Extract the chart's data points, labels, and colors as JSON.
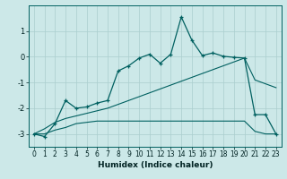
{
  "xlabel": "Humidex (Indice chaleur)",
  "bg_color": "#cce8e8",
  "line_color": "#006060",
  "x_values": [
    0,
    1,
    2,
    3,
    4,
    5,
    6,
    7,
    8,
    9,
    10,
    11,
    12,
    13,
    14,
    15,
    16,
    17,
    18,
    19,
    20,
    21,
    22,
    23
  ],
  "line1_y": [
    -3.0,
    -3.1,
    -2.6,
    -1.7,
    -2.0,
    -1.95,
    -1.8,
    -1.7,
    -0.55,
    -0.35,
    -0.05,
    0.1,
    -0.25,
    0.1,
    1.55,
    0.65,
    0.05,
    0.15,
    0.02,
    -0.02,
    -0.05,
    -2.25,
    -2.25,
    -3.0
  ],
  "line2_y": [
    -3.0,
    -2.8,
    -2.55,
    -2.4,
    -2.3,
    -2.2,
    -2.1,
    -2.0,
    -1.85,
    -1.7,
    -1.55,
    -1.4,
    -1.25,
    -1.1,
    -0.95,
    -0.8,
    -0.65,
    -0.5,
    -0.35,
    -0.2,
    -0.05,
    -0.9,
    -1.05,
    -1.2
  ],
  "line3_y": [
    -3.0,
    -3.0,
    -2.85,
    -2.75,
    -2.6,
    -2.55,
    -2.5,
    -2.5,
    -2.5,
    -2.5,
    -2.5,
    -2.5,
    -2.5,
    -2.5,
    -2.5,
    -2.5,
    -2.5,
    -2.5,
    -2.5,
    -2.5,
    -2.5,
    -2.9,
    -3.0,
    -3.0
  ],
  "ylim": [
    -3.5,
    2.0
  ],
  "yticks": [
    -3,
    -2,
    -1,
    0,
    1
  ],
  "grid_color": "#aacece",
  "xlabel_fontsize": 6.5,
  "tick_fontsize": 5.5
}
